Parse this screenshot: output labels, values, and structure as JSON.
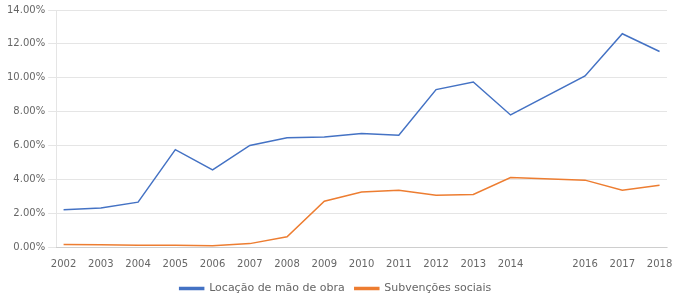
{
  "chart_data": {
    "type": "line",
    "x": [
      2002,
      2003,
      2004,
      2005,
      2006,
      2007,
      2008,
      2009,
      2010,
      2011,
      2012,
      2013,
      2014,
      2016,
      2017,
      2018
    ],
    "series": [
      {
        "name": "Locação de mão de obra",
        "color": "#4472C4",
        "values": [
          0.022,
          0.023,
          0.0265,
          0.0575,
          0.0455,
          0.06,
          0.0645,
          0.065,
          0.067,
          0.066,
          0.093,
          0.0975,
          0.078,
          0.101,
          0.126,
          0.1155
        ]
      },
      {
        "name": "Subvenções sociais",
        "color": "#ED7D31",
        "values": [
          0.0015,
          0.0013,
          0.001,
          0.001,
          0.0008,
          0.002,
          0.006,
          0.027,
          0.0325,
          0.0335,
          0.0305,
          0.031,
          0.041,
          0.0395,
          0.0335,
          0.0365
        ]
      }
    ],
    "xlim": [
      2001.8,
      2018.2
    ],
    "xticks": [
      2002,
      2003,
      2004,
      2005,
      2006,
      2007,
      2008,
      2009,
      2010,
      2011,
      2012,
      2013,
      2014,
      2016,
      2017,
      2018
    ],
    "ylim": [
      0,
      0.14
    ],
    "yticks": [
      {
        "value": 0.0,
        "label": "0.00%"
      },
      {
        "value": 0.02,
        "label": "2.00%"
      },
      {
        "value": 0.04,
        "label": "4.00%"
      },
      {
        "value": 0.06,
        "label": "6.00%"
      },
      {
        "value": 0.08,
        "label": "8.00%"
      },
      {
        "value": 0.1,
        "label": "10.00%"
      },
      {
        "value": 0.12,
        "label": "12.00%"
      },
      {
        "value": 0.14,
        "label": "14.00%"
      }
    ],
    "grid": "y",
    "legend": "bottom"
  }
}
